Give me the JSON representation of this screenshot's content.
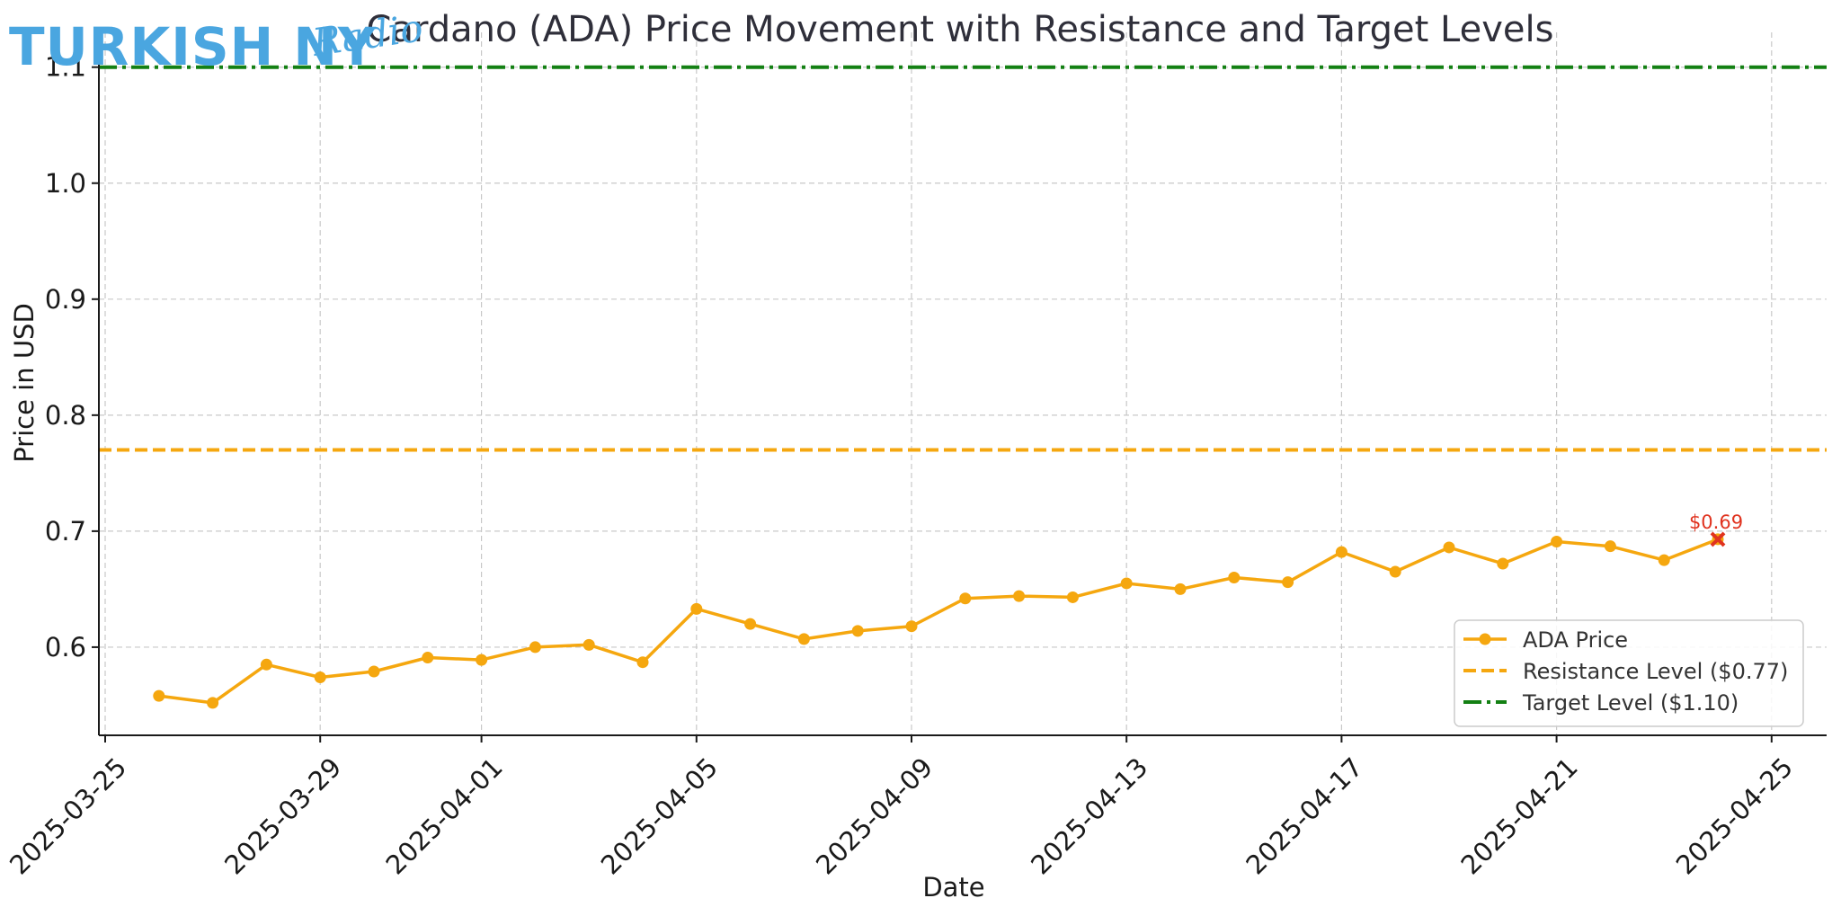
{
  "logo": {
    "main": "TURKISH NY",
    "script": "Radio",
    "color": "#4aa6e0"
  },
  "chart_data": {
    "type": "line",
    "title": "Cardano (ADA) Price Movement with Resistance and Target Levels",
    "xlabel": "Date",
    "ylabel": "Price in USD",
    "x_tick_labels": [
      "2025-03-25",
      "2025-03-29",
      "2025-04-01",
      "2025-04-05",
      "2025-04-09",
      "2025-04-13",
      "2025-04-17",
      "2025-04-21",
      "2025-04-25"
    ],
    "y_tick_labels": [
      "0.6",
      "0.7",
      "0.8",
      "0.9",
      "1.0",
      "1.1"
    ],
    "ylim": [
      0.524,
      1.13
    ],
    "grid": true,
    "series": [
      {
        "name": "ADA Price",
        "color": "#f5a70f",
        "x": [
          "2025-03-26",
          "2025-03-27",
          "2025-03-28",
          "2025-03-29",
          "2025-03-30",
          "2025-03-31",
          "2025-04-01",
          "2025-04-02",
          "2025-04-03",
          "2025-04-04",
          "2025-04-05",
          "2025-04-06",
          "2025-04-07",
          "2025-04-08",
          "2025-04-09",
          "2025-04-10",
          "2025-04-11",
          "2025-04-12",
          "2025-04-13",
          "2025-04-14",
          "2025-04-15",
          "2025-04-16",
          "2025-04-17",
          "2025-04-18",
          "2025-04-19",
          "2025-04-20",
          "2025-04-21",
          "2025-04-22",
          "2025-04-23",
          "2025-04-24"
        ],
        "values": [
          0.558,
          0.552,
          0.585,
          0.574,
          0.579,
          0.591,
          0.589,
          0.6,
          0.602,
          0.587,
          0.633,
          0.62,
          0.607,
          0.614,
          0.618,
          0.642,
          0.644,
          0.643,
          0.655,
          0.65,
          0.66,
          0.656,
          0.682,
          0.665,
          0.686,
          0.672,
          0.691,
          0.687,
          0.675,
          0.693
        ]
      }
    ],
    "reference_lines": [
      {
        "name": "Resistance Level ($0.77)",
        "value": 0.77,
        "color": "#f5a70f",
        "style": "dashed"
      },
      {
        "name": "Target Level ($1.10)",
        "value": 1.1,
        "color": "#138013",
        "style": "dashdot"
      }
    ],
    "annotations": [
      {
        "text": "$0.69",
        "x": "2025-04-24",
        "y": 0.693,
        "marker": "x",
        "color": "#e0331f"
      }
    ],
    "legend": {
      "placement": "bottom-right",
      "entries": [
        "ADA Price",
        "Resistance Level ($0.77)",
        "Target Level ($1.10)"
      ]
    }
  }
}
